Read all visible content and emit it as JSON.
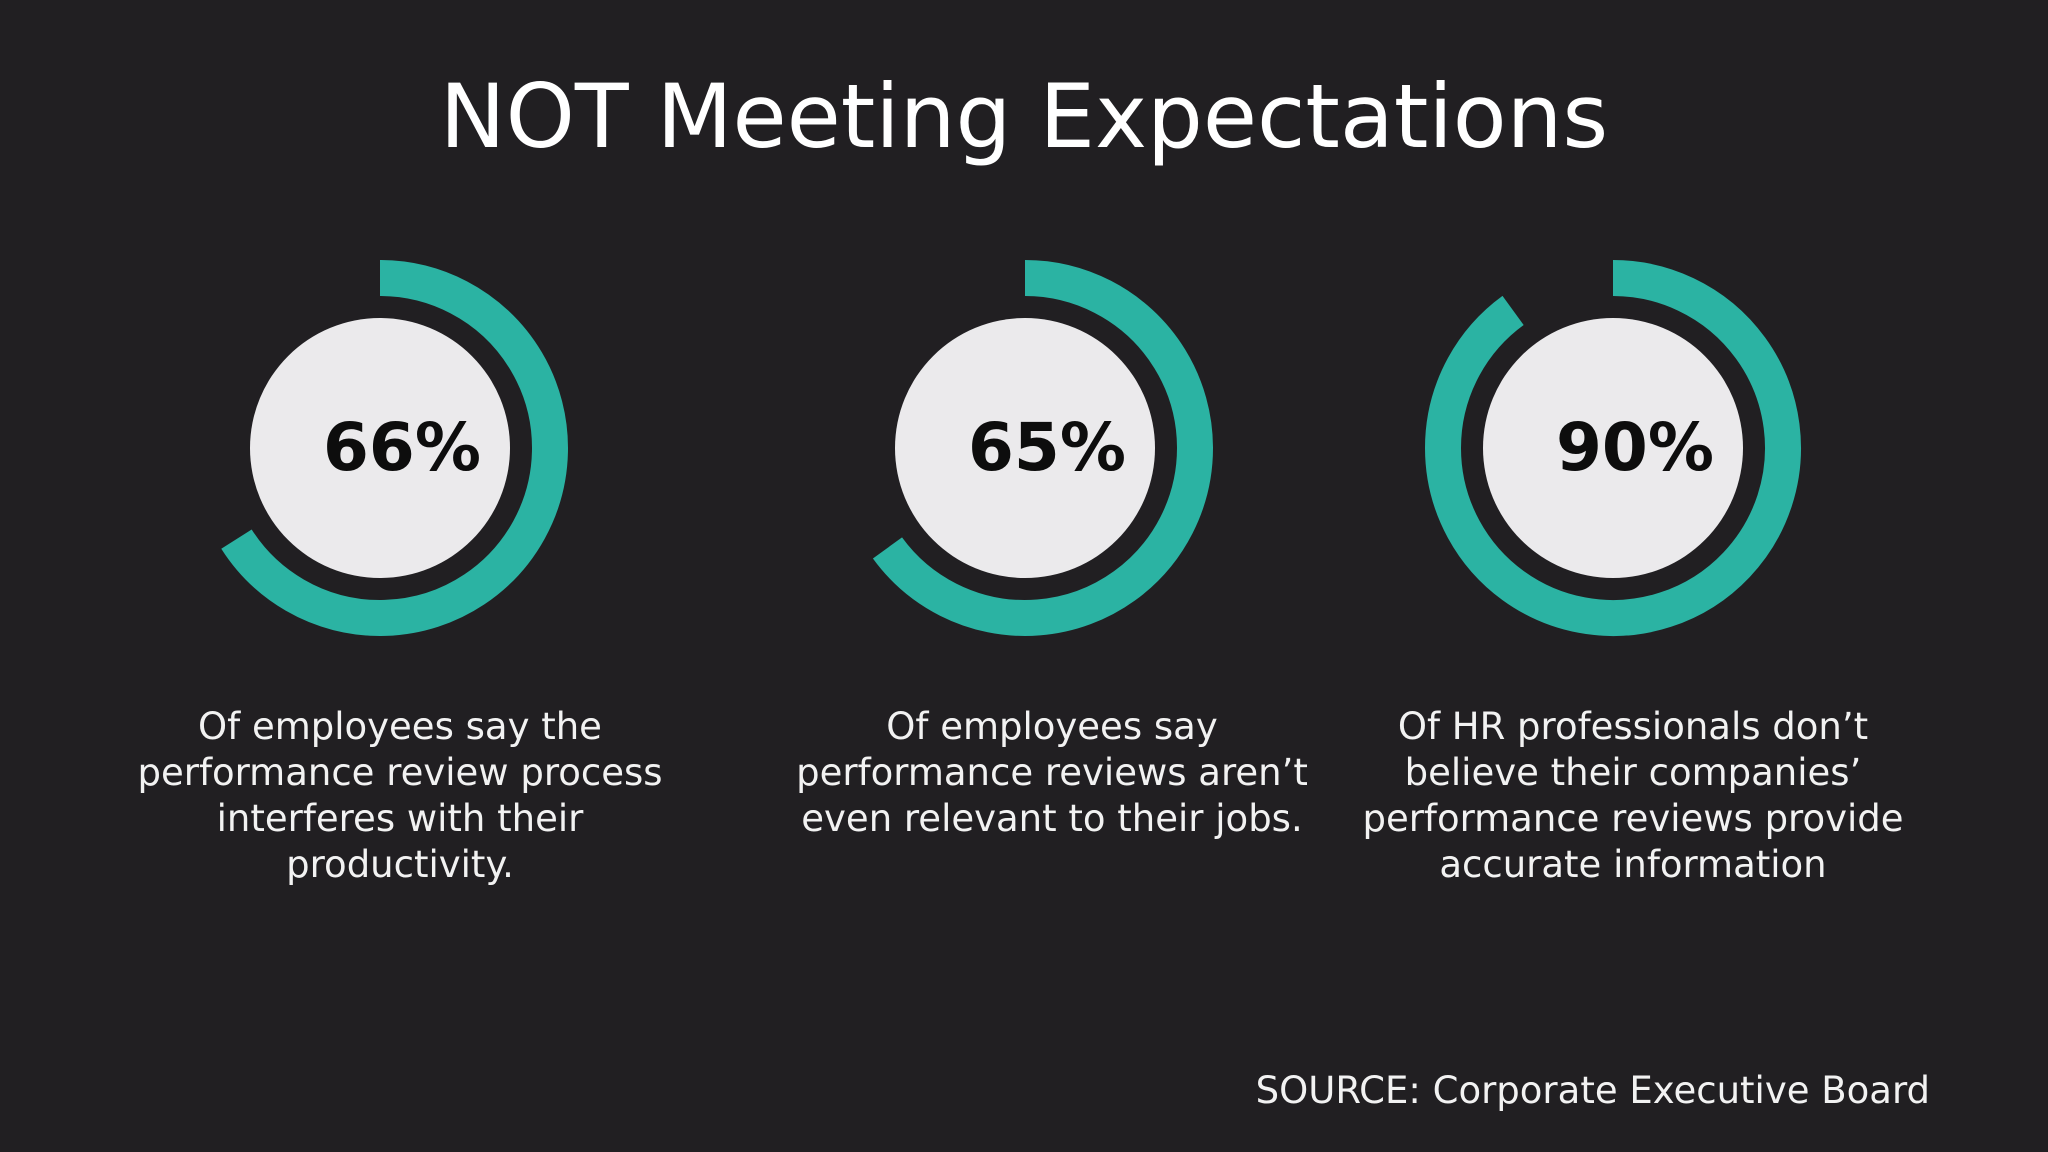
{
  "title": "NOT Meeting Expectations",
  "source": "SOURCE: Corporate Executive Board",
  "colors": {
    "background": "#211f22",
    "ring": "#2bb3a3",
    "disc": "#ebeaec",
    "text": "#ffffff"
  },
  "chart_data": {
    "type": "pie",
    "title": "NOT Meeting Expectations",
    "items": [
      {
        "value": 66,
        "label": "66%",
        "description": "Of employees say the performance review process interferes with their productivity."
      },
      {
        "value": 65,
        "label": "65%",
        "description": "Of employees say performance reviews aren’t even relevant to their jobs."
      },
      {
        "value": 90,
        "label": "90%",
        "description": "Of HR professionals don’t believe their companies’ performance reviews provide accurate information"
      }
    ]
  }
}
